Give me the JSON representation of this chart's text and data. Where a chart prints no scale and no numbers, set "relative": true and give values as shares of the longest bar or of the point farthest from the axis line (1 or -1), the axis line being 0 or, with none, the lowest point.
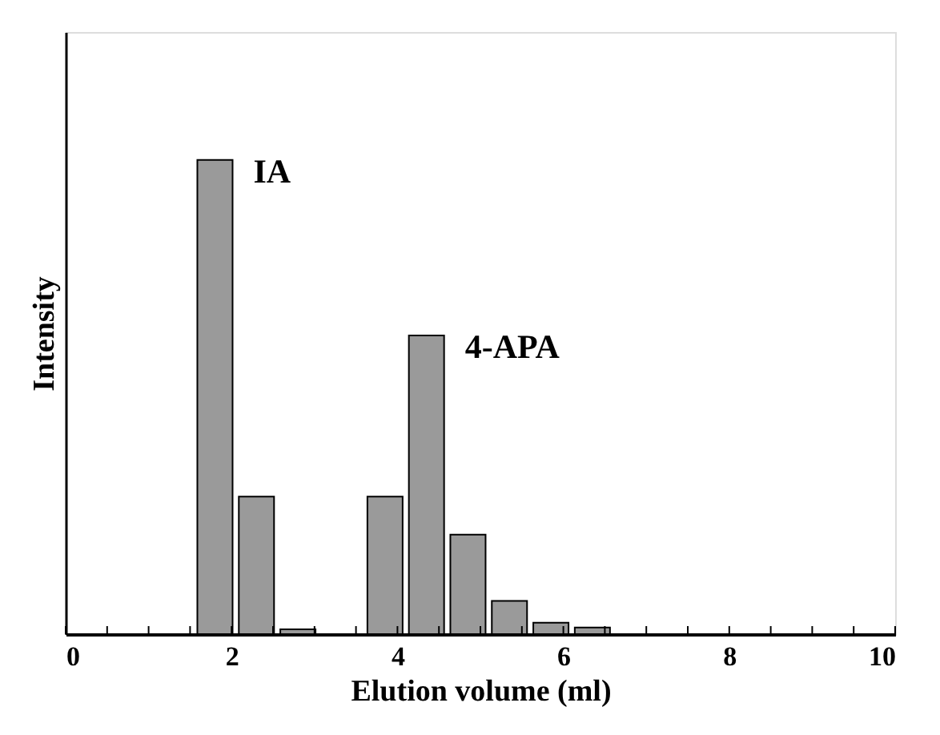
{
  "chart_data": {
    "type": "bar",
    "xlabel": "Elution volume (ml)",
    "ylabel": "Intensity",
    "relative": true,
    "x": [
      1.8,
      2.3,
      2.8,
      3.85,
      4.35,
      4.85,
      5.35,
      5.85,
      6.35
    ],
    "values": [
      1,
      0.29,
      0.01,
      0.29,
      0.63,
      0.21,
      0.07,
      0.024,
      0.014
    ],
    "color": "#9a9a9a",
    "xlim": [
      0,
      10
    ],
    "xticks": [
      0,
      {
        "value": 0.5,
        "label": null
      },
      {
        "value": 1,
        "label": null
      },
      {
        "value": 1.5,
        "label": null
      },
      2,
      {
        "value": 2.5,
        "label": null
      },
      {
        "value": 3,
        "label": null
      },
      {
        "value": 3.5,
        "label": null
      },
      4,
      {
        "value": 4.5,
        "label": null
      },
      {
        "value": 5,
        "label": null
      },
      {
        "value": 5.5,
        "label": null
      },
      6,
      {
        "value": 6.5,
        "label": null
      },
      {
        "value": 7,
        "label": null
      },
      {
        "value": 7.5,
        "label": null
      },
      8,
      {
        "value": 8.5,
        "label": null
      },
      {
        "value": 9,
        "label": null
      },
      {
        "value": 9.5,
        "label": null
      },
      10
    ],
    "annotations": [
      {
        "text": "IA",
        "x": 1.8,
        "y": 1
      },
      {
        "text": "4-APA",
        "x": 4.35,
        "y": 0.63
      }
    ],
    "grid": false
  }
}
